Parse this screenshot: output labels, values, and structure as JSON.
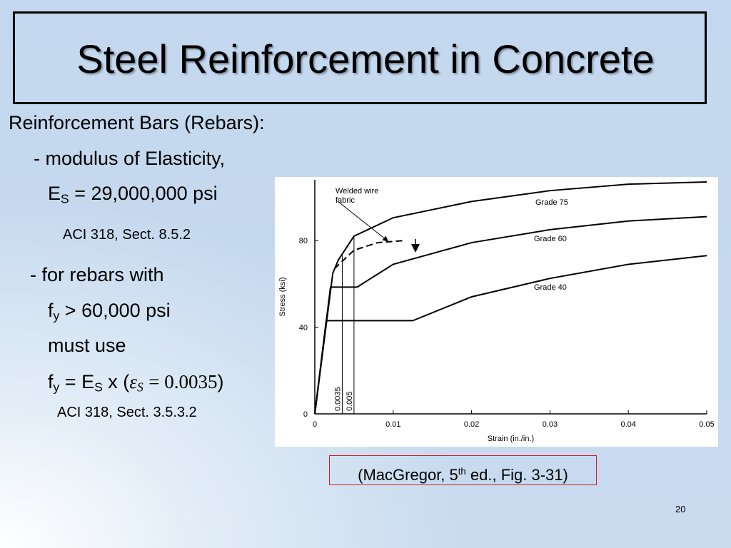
{
  "title": "Steel Reinforcement in Concrete",
  "body": {
    "heading": "Reinforcement Bars (Rebars):",
    "modulus": "- modulus of Elasticity,",
    "es": [
      "E",
      "S",
      "= 29,000,000 psi"
    ],
    "ref1": "ACI 318, Sect. 8.5.2",
    "rebars": "- for rebars with",
    "fy_cond": [
      "f",
      "y",
      "> 60,000 psi"
    ],
    "must": "must use",
    "fy_eq": [
      "f",
      "y",
      "= E",
      "S",
      "x (",
      "ε",
      "S",
      "= 0.0035",
      ")"
    ],
    "ref2": "ACI 318, Sect. 3.5.3.2"
  },
  "citation": [
    "(MacGregor, 5",
    "th",
    "ed., Fig. 3-31)"
  ],
  "page_number": "20",
  "chart_data": {
    "type": "line",
    "xlabel": "Strain (in./in.)",
    "ylabel": "Stress (ksi)",
    "xlim": [
      0,
      0.05
    ],
    "ylim": [
      0,
      108
    ],
    "xticks": [
      0,
      0.01,
      0.02,
      0.03,
      0.04,
      0.05
    ],
    "yticks": [
      0,
      40,
      80
    ],
    "strain_markers": [
      0.0035,
      0.005
    ],
    "series": [
      {
        "name": "Grade 75",
        "color": "#000000",
        "dashed": false,
        "x": [
          0,
          0.0023,
          0.003,
          0.005,
          0.01,
          0.02,
          0.03,
          0.04,
          0.05
        ],
        "values": [
          0,
          65,
          71,
          82,
          90.5,
          98,
          103,
          106,
          107
        ]
      },
      {
        "name": "Grade 60",
        "color": "#000000",
        "dashed": false,
        "x": [
          0,
          0.002,
          0.0054,
          0.01,
          0.02,
          0.03,
          0.04,
          0.05
        ],
        "values": [
          0,
          58.5,
          58.5,
          69,
          79,
          85,
          89,
          91
        ]
      },
      {
        "name": "Grade 40",
        "color": "#000000",
        "dashed": false,
        "x": [
          0,
          0.00145,
          0.0125,
          0.02,
          0.03,
          0.04,
          0.05
        ],
        "values": [
          0,
          43,
          43,
          54,
          62.5,
          69,
          73
        ]
      },
      {
        "name": "Welded wire fabric",
        "color": "#000000",
        "dashed": true,
        "x": [
          0.0025,
          0.005,
          0.008,
          0.0115
        ],
        "values": [
          67,
          75.5,
          79,
          80
        ]
      }
    ]
  }
}
